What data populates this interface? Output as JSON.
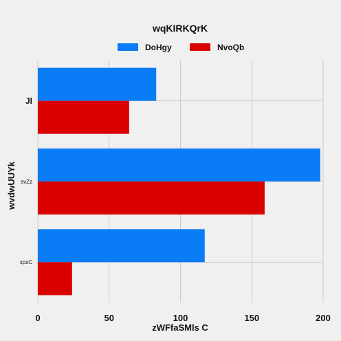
{
  "chart_data": {
    "type": "bar",
    "orientation": "horizontal",
    "title": "wqKIRKQrK",
    "xlabel": "zWFfaSMls C",
    "ylabel": "wvdwUUYk",
    "categories": [
      "Jl",
      "svZz",
      "xpsC"
    ],
    "series": [
      {
        "name": "DoHgy",
        "color": "#0a7cf5",
        "values": [
          83,
          198,
          117
        ]
      },
      {
        "name": "NvoQb",
        "color": "#d90000",
        "values": [
          64,
          159,
          24
        ]
      }
    ],
    "xlim": [
      0,
      200
    ],
    "xticks": [
      "0",
      "50",
      "100",
      "150",
      "200"
    ],
    "grid": true,
    "legend_position": "top-center"
  }
}
